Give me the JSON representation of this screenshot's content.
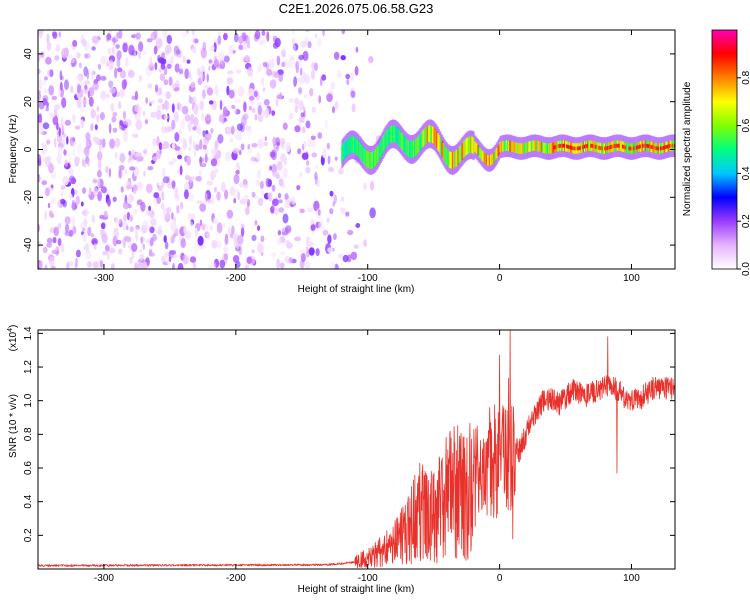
{
  "title": "C2E1.2026.075.06.58.G23",
  "chart_data": [
    {
      "type": "heatmap",
      "name": "spectrogram",
      "xlabel": "Height of straight line (km)",
      "ylabel": "Frequency (Hz)",
      "xlim": [
        -350,
        133
      ],
      "ylim": [
        -50,
        50
      ],
      "xticks": [
        -300,
        -200,
        -100,
        0,
        100
      ],
      "yticks": [
        -40,
        -20,
        0,
        20,
        40
      ],
      "x_ticklabels": [
        "-300",
        "-200",
        "-100",
        "0",
        "100"
      ],
      "y_ticklabels": [
        "-40",
        "-20",
        "0",
        "20",
        "40"
      ],
      "noise_region": [
        -350,
        -100
      ],
      "signal_region": [
        -120,
        133
      ],
      "signal_center_hz": 1,
      "colorbar": {
        "label": "Normalized spectral amplitude",
        "range": [
          0,
          1
        ],
        "ticks": [
          0.0,
          0.2,
          0.4,
          0.6,
          0.8
        ],
        "ticklabels": [
          "0.0",
          "0.2",
          "0.4",
          "0.6",
          "0.8"
        ],
        "colors": [
          "#ffffff",
          "#e6b3ff",
          "#9a3cff",
          "#0000ff",
          "#00c8ff",
          "#00ff7f",
          "#80ff00",
          "#ffff00",
          "#ff8000",
          "#ff0000",
          "#ff00b4"
        ]
      }
    },
    {
      "type": "line",
      "name": "snr",
      "xlabel": "Height of straight line (km)",
      "ylabel": "SNR (10 * v/v)",
      "multiplier": "(x10",
      "multiplier_exp": "4",
      "multiplier_close": ")",
      "xlim": [
        -350,
        133
      ],
      "ylim": [
        0,
        1.42
      ],
      "xticks": [
        -300,
        -200,
        -100,
        0,
        100
      ],
      "yticks": [
        0.2,
        0.4,
        0.6,
        0.8,
        1.0,
        1.2,
        1.4
      ],
      "x_ticklabels": [
        "-300",
        "-200",
        "-100",
        "0",
        "100"
      ],
      "y_ticklabels": [
        "0.2",
        "0.4",
        "0.6",
        "0.8",
        "1.0",
        "1.2",
        "1.4"
      ],
      "color": "#e8312a",
      "envelope": [
        {
          "x": -350,
          "y": 0.02
        },
        {
          "x": -130,
          "y": 0.025
        },
        {
          "x": -110,
          "y": 0.04
        },
        {
          "x": -95,
          "y": 0.08
        },
        {
          "x": -80,
          "y": 0.15
        },
        {
          "x": -70,
          "y": 0.22
        },
        {
          "x": -60,
          "y": 0.35
        },
        {
          "x": -50,
          "y": 0.3
        },
        {
          "x": -40,
          "y": 0.42
        },
        {
          "x": -25,
          "y": 0.5
        },
        {
          "x": -10,
          "y": 0.62
        },
        {
          "x": 0,
          "y": 0.65
        },
        {
          "x": 8,
          "y": 0.75
        },
        {
          "x": 15,
          "y": 0.7
        },
        {
          "x": 25,
          "y": 0.9
        },
        {
          "x": 35,
          "y": 1.02
        },
        {
          "x": 45,
          "y": 0.98
        },
        {
          "x": 55,
          "y": 1.06
        },
        {
          "x": 65,
          "y": 1.03
        },
        {
          "x": 75,
          "y": 1.07
        },
        {
          "x": 85,
          "y": 1.1
        },
        {
          "x": 95,
          "y": 1.02
        },
        {
          "x": 105,
          "y": 1.0
        },
        {
          "x": 115,
          "y": 1.07
        },
        {
          "x": 125,
          "y": 1.08
        },
        {
          "x": 133,
          "y": 1.06
        }
      ],
      "peaks": [
        {
          "x": -55,
          "y": 0.55
        },
        {
          "x": -20,
          "y": 0.62
        },
        {
          "x": -8,
          "y": 0.82
        },
        {
          "x": 0,
          "y": 1.27
        },
        {
          "x": 8,
          "y": 1.42
        },
        {
          "x": 10,
          "y": 0.18
        },
        {
          "x": 82,
          "y": 1.38
        },
        {
          "x": 89,
          "y": 0.57
        }
      ]
    }
  ]
}
